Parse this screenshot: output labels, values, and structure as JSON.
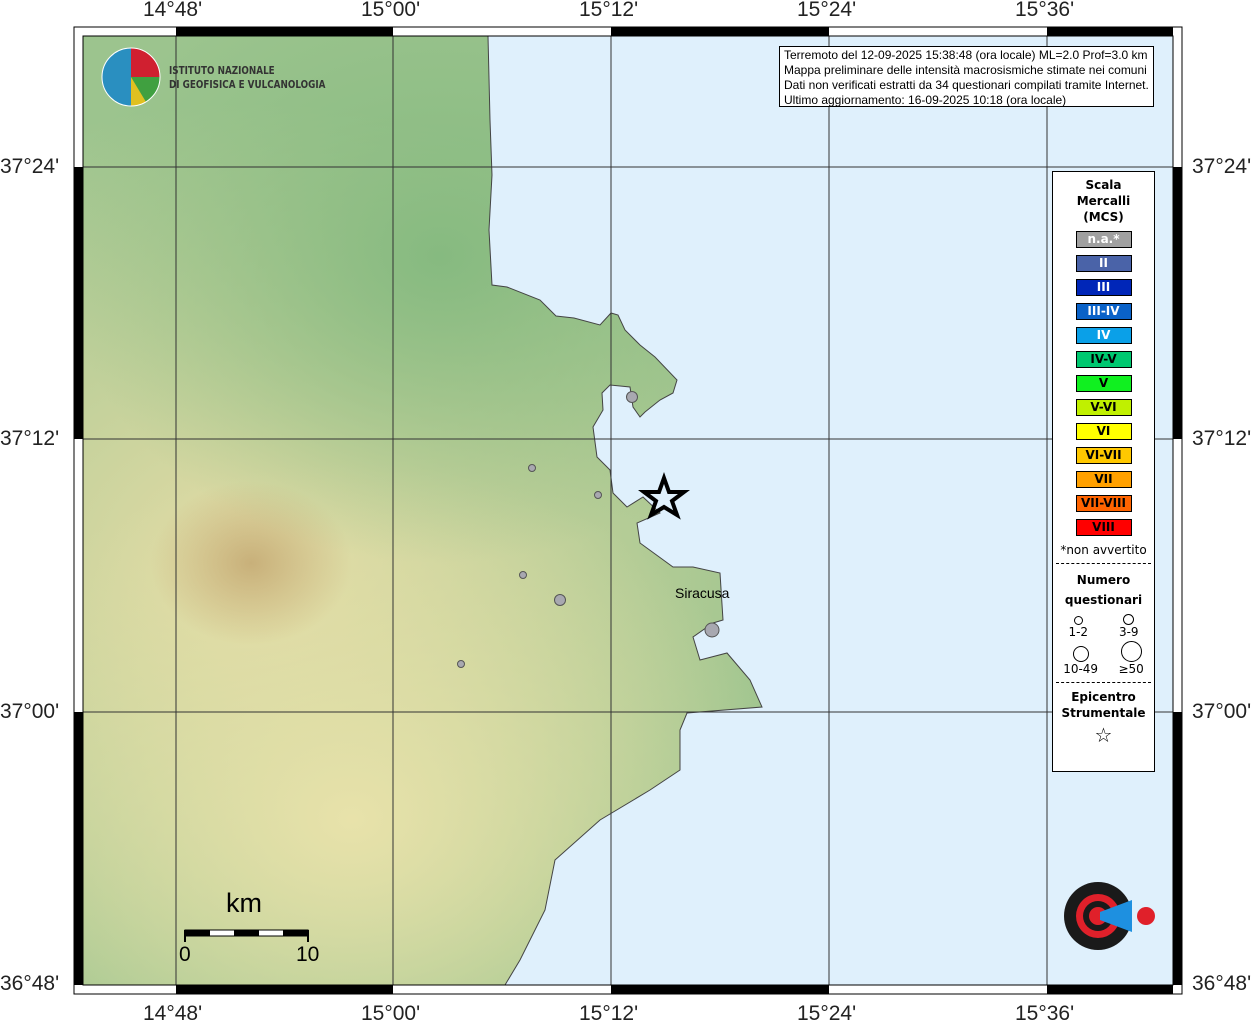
{
  "lon_labels": [
    "14°48'",
    "15°00'",
    "15°12'",
    "15°24'",
    "15°36'"
  ],
  "lat_labels": [
    "37°24'",
    "37°12'",
    "37°00'",
    "36°48'"
  ],
  "info": {
    "line1": "Terremoto del 12-09-2025 15:38:48 (ora locale) ML=2.0 Prof=3.0 km",
    "line2": "Mappa preliminare delle intensità macrosismiche stimate nei comuni",
    "line3": "Dati non verificati estratti da 34 questionari compilati tramite Internet.",
    "line4": "Ultimo aggiornamento: 16-09-2025 10:18 (ora locale)"
  },
  "logo": {
    "line1": "ISTITUTO NAZIONALE",
    "line2": "DI GEOFISICA E VULCANOLOGIA"
  },
  "watermark_logo": "www.haisentitoilterremoto.it",
  "city": "Siracusa",
  "scale": {
    "unit": "km",
    "min": "0",
    "max": "10"
  },
  "legend": {
    "title1": "Scala",
    "title2": "Mercalli",
    "title3": "(MCS)",
    "classes": [
      {
        "label": "n.a.*",
        "color": "#a0a0a0",
        "text": "#fff"
      },
      {
        "label": "II",
        "color": "#4a63a8",
        "text": "#fff"
      },
      {
        "label": "III",
        "color": "#0026b8",
        "text": "#fff"
      },
      {
        "label": "III-IV",
        "color": "#0a62c8",
        "text": "#fff"
      },
      {
        "label": "IV",
        "color": "#0aa0e8",
        "text": "#fff"
      },
      {
        "label": "IV-V",
        "color": "#00c870",
        "text": "#000"
      },
      {
        "label": "V",
        "color": "#10f020",
        "text": "#000"
      },
      {
        "label": "V-VI",
        "color": "#c0f000",
        "text": "#000"
      },
      {
        "label": "VI",
        "color": "#ffff00",
        "text": "#000"
      },
      {
        "label": "VI-VII",
        "color": "#ffc800",
        "text": "#000"
      },
      {
        "label": "VII",
        "color": "#ffa000",
        "text": "#000"
      },
      {
        "label": "VII-VIII",
        "color": "#ff6400",
        "text": "#000"
      },
      {
        "label": "VIII",
        "color": "#ff0000",
        "text": "#000"
      }
    ],
    "note": "*non avvertito",
    "q_title1": "Numero",
    "q_title2": "questionari",
    "q_sizes": [
      "1-2",
      "3-9",
      "10-49",
      "≥50"
    ],
    "epi1": "Epicentro",
    "epi2": "Strumentale"
  },
  "colors": {
    "sea": "#dff0fc",
    "land": "#9cc48e"
  }
}
